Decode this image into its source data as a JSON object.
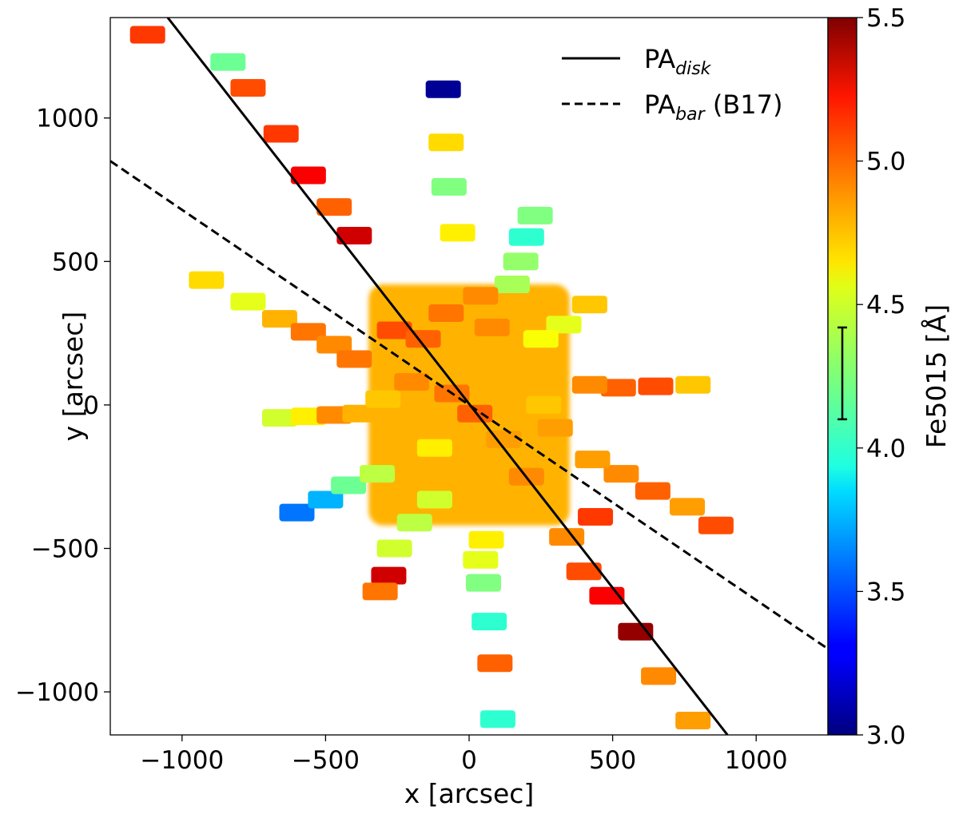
{
  "chart_data": {
    "type": "scatter",
    "xlabel": "x [arcsec]",
    "ylabel": "y [arcsec]",
    "xlim": [
      -1250,
      1250
    ],
    "ylim": [
      -1150,
      1350
    ],
    "x_ticks": [
      -1000,
      -500,
      0,
      500,
      1000
    ],
    "y_ticks": [
      -1000,
      -500,
      0,
      500,
      1000
    ],
    "x_tick_labels": [
      "−1000",
      "−500",
      "0",
      "500",
      "1000"
    ],
    "y_tick_labels": [
      "−1000",
      "−500",
      "0",
      "500",
      "1000"
    ],
    "grid": false,
    "legend_position": "top-right",
    "legend": [
      {
        "style": "solid",
        "label_main": "PA",
        "label_sub": "disk",
        "label_tail": ""
      },
      {
        "style": "dashed",
        "label_main": "PA",
        "label_sub": "bar",
        "label_tail": " (B17)"
      }
    ],
    "lines": [
      {
        "name": "PA_disk",
        "style": "solid",
        "points": [
          [
            -1050,
            1350
          ],
          [
            900,
            -1150
          ]
        ]
      },
      {
        "name": "PA_bar (B17)",
        "style": "dashed",
        "points": [
          [
            -1250,
            850
          ],
          [
            1250,
            -850
          ]
        ]
      }
    ],
    "colorbar": {
      "label": "Fe5015 [Å]",
      "min": 3.0,
      "max": 5.5,
      "ticks": [
        3.0,
        3.5,
        4.0,
        4.5,
        5.0,
        5.5
      ],
      "tick_labels": [
        "3.0",
        "3.5",
        "4.0",
        "4.5",
        "5.0",
        "5.5"
      ],
      "colormap": "jet",
      "errorbar": [
        4.1,
        4.42
      ]
    },
    "core_region": {
      "center": [
        0,
        0
      ],
      "half_size": [
        350,
        420
      ],
      "value": 4.75
    },
    "points": [
      {
        "x": -1120,
        "y": 1290,
        "v": 5.05
      },
      {
        "x": -840,
        "y": 1195,
        "v": 4.2
      },
      {
        "x": -770,
        "y": 1105,
        "v": 5.0
      },
      {
        "x": -655,
        "y": 945,
        "v": 5.05
      },
      {
        "x": -560,
        "y": 800,
        "v": 5.2
      },
      {
        "x": -470,
        "y": 690,
        "v": 4.95
      },
      {
        "x": -400,
        "y": 590,
        "v": 5.3
      },
      {
        "x": -90,
        "y": 1100,
        "v": 3.05
      },
      {
        "x": -80,
        "y": 915,
        "v": 4.65
      },
      {
        "x": -70,
        "y": 760,
        "v": 4.25
      },
      {
        "x": -40,
        "y": 600,
        "v": 4.6
      },
      {
        "x": 230,
        "y": 660,
        "v": 4.25
      },
      {
        "x": 200,
        "y": 585,
        "v": 4.05
      },
      {
        "x": 180,
        "y": 500,
        "v": 4.3
      },
      {
        "x": 150,
        "y": 420,
        "v": 4.35
      },
      {
        "x": -915,
        "y": 435,
        "v": 4.65
      },
      {
        "x": -770,
        "y": 360,
        "v": 4.5
      },
      {
        "x": -660,
        "y": 300,
        "v": 4.75
      },
      {
        "x": -560,
        "y": 255,
        "v": 4.9
      },
      {
        "x": -470,
        "y": 210,
        "v": 4.85
      },
      {
        "x": -400,
        "y": 160,
        "v": 4.9
      },
      {
        "x": 420,
        "y": 350,
        "v": 4.7
      },
      {
        "x": 330,
        "y": 280,
        "v": 4.5
      },
      {
        "x": 250,
        "y": 230,
        "v": 4.55
      },
      {
        "x": 780,
        "y": 70,
        "v": 4.7
      },
      {
        "x": 650,
        "y": 65,
        "v": 5.0
      },
      {
        "x": 520,
        "y": 60,
        "v": 4.95
      },
      {
        "x": 420,
        "y": 70,
        "v": 4.85
      },
      {
        "x": -660,
        "y": -45,
        "v": 4.45
      },
      {
        "x": -560,
        "y": -40,
        "v": 4.6
      },
      {
        "x": -470,
        "y": -35,
        "v": 4.85
      },
      {
        "x": -380,
        "y": -30,
        "v": 4.75
      },
      {
        "x": 860,
        "y": -420,
        "v": 5.0
      },
      {
        "x": 760,
        "y": -355,
        "v": 4.8
      },
      {
        "x": 640,
        "y": -300,
        "v": 4.95
      },
      {
        "x": 530,
        "y": -240,
        "v": 4.85
      },
      {
        "x": 430,
        "y": -190,
        "v": 4.8
      },
      {
        "x": -600,
        "y": -375,
        "v": 3.6
      },
      {
        "x": -500,
        "y": -330,
        "v": 3.75
      },
      {
        "x": -420,
        "y": -280,
        "v": 4.2
      },
      {
        "x": -320,
        "y": -240,
        "v": 4.4
      },
      {
        "x": -280,
        "y": -595,
        "v": 5.3
      },
      {
        "x": -310,
        "y": -650,
        "v": 4.9
      },
      {
        "x": -260,
        "y": -500,
        "v": 4.45
      },
      {
        "x": -190,
        "y": -410,
        "v": 4.4
      },
      {
        "x": -120,
        "y": -330,
        "v": 4.45
      },
      {
        "x": 50,
        "y": -620,
        "v": 4.25
      },
      {
        "x": 40,
        "y": -540,
        "v": 4.5
      },
      {
        "x": 60,
        "y": -470,
        "v": 4.6
      },
      {
        "x": 70,
        "y": -755,
        "v": 4.05
      },
      {
        "x": 90,
        "y": -900,
        "v": 4.95
      },
      {
        "x": 100,
        "y": -1095,
        "v": 4.05
      },
      {
        "x": 400,
        "y": -580,
        "v": 5.0
      },
      {
        "x": 480,
        "y": -665,
        "v": 5.2
      },
      {
        "x": 580,
        "y": -790,
        "v": 5.45
      },
      {
        "x": 660,
        "y": -945,
        "v": 4.85
      },
      {
        "x": 780,
        "y": -1100,
        "v": 4.8
      },
      {
        "x": 340,
        "y": -460,
        "v": 4.85
      },
      {
        "x": 440,
        "y": -390,
        "v": 5.05
      },
      {
        "x": -260,
        "y": 260,
        "v": 5.0
      },
      {
        "x": -160,
        "y": 230,
        "v": 4.95
      },
      {
        "x": 80,
        "y": 270,
        "v": 4.85
      },
      {
        "x": -80,
        "y": 320,
        "v": 4.9
      },
      {
        "x": 40,
        "y": 380,
        "v": 4.85
      },
      {
        "x": -200,
        "y": 80,
        "v": 4.85
      },
      {
        "x": 120,
        "y": -120,
        "v": 4.8
      },
      {
        "x": 20,
        "y": -30,
        "v": 4.95
      },
      {
        "x": -60,
        "y": 40,
        "v": 4.9
      },
      {
        "x": 200,
        "y": -250,
        "v": 4.85
      },
      {
        "x": 260,
        "y": 0,
        "v": 4.7
      },
      {
        "x": -120,
        "y": -150,
        "v": 4.6
      },
      {
        "x": 80,
        "y": 150,
        "v": 4.75
      },
      {
        "x": -300,
        "y": 20,
        "v": 4.7
      },
      {
        "x": 300,
        "y": -80,
        "v": 4.8
      }
    ]
  }
}
